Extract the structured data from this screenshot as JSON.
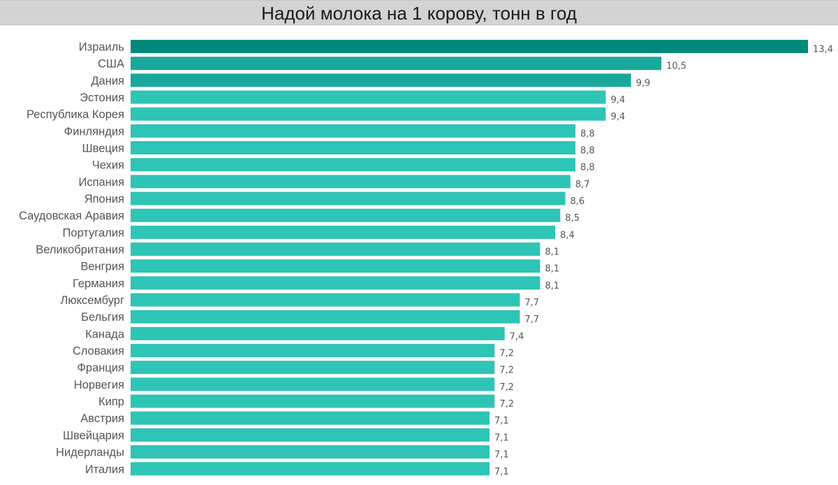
{
  "chart_data": {
    "type": "bar",
    "orientation": "horizontal",
    "title": "Надой молока на 1 корову, тонн в год",
    "categories": [
      "Израиль",
      "США",
      "Дания",
      "Эстония",
      "Республика Корея",
      "Финляндия",
      "Швеция",
      "Чехия",
      "Испания",
      "Япония",
      "Саудовская Аравия",
      "Португалия",
      "Великобритания",
      "Венгрия",
      "Германия",
      "Люксембург",
      "Бельгия",
      "Канада",
      "Словакия",
      "Франция",
      "Норвегия",
      "Кипр",
      "Австрия",
      "Швейцария",
      "Нидерланды",
      "Италия"
    ],
    "values": [
      13.4,
      10.5,
      9.9,
      9.4,
      9.4,
      8.8,
      8.8,
      8.8,
      8.7,
      8.6,
      8.5,
      8.4,
      8.1,
      8.1,
      8.1,
      7.7,
      7.7,
      7.4,
      7.2,
      7.2,
      7.2,
      7.2,
      7.1,
      7.1,
      7.1,
      7.1
    ],
    "value_labels": [
      "13,4",
      "10,5",
      "9,9",
      "9,4",
      "9,4",
      "8,8",
      "8,8",
      "8,8",
      "8,7",
      "8,6",
      "8,5",
      "8,4",
      "8,1",
      "8,1",
      "8,1",
      "7,7",
      "7,7",
      "7,4",
      "7,2",
      "7,2",
      "7,2",
      "7,2",
      "7,1",
      "7,1",
      "7,1",
      "7,1"
    ],
    "xlim": [
      0,
      13.4
    ],
    "grid": false,
    "legend": "none",
    "colors": {
      "max": "#00897b",
      "high": "#1aa89c",
      "base": "#2ec4b6"
    }
  }
}
